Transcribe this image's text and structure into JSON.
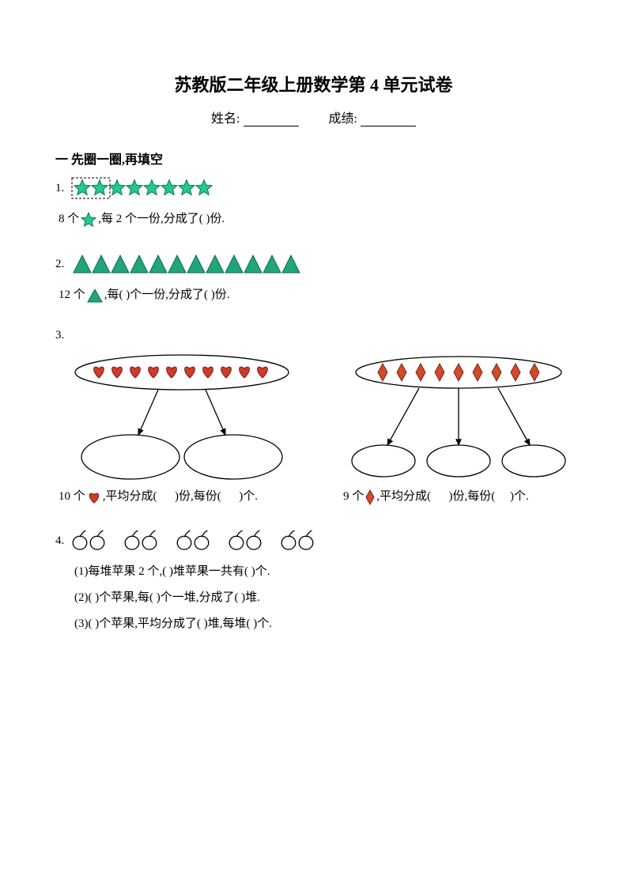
{
  "doc": {
    "title": "苏教版二年级上册数学第 4 单元试卷",
    "name_label": "姓名:",
    "score_label": "成绩:",
    "section1_heading": "一  先圈一圈,再填空"
  },
  "colors": {
    "star_fill": "#24c78f",
    "star_stroke": "#0a7a52",
    "tri_fill": "#22a57b",
    "tri_stroke": "#0a6b4d",
    "heart_fill": "#d03a2a",
    "heart_stroke": "#7a1d12",
    "diamond_fill": "#d24a2a",
    "diamond_stroke": "#7a2512",
    "outline": "#000000",
    "background": "#ffffff"
  },
  "q1": {
    "num": "1.",
    "count": 8,
    "circled_first": 2,
    "star_size": 22,
    "text_a": "8 个",
    "text_b": ",每 2 个一份,分成了(          )份."
  },
  "q2": {
    "num": "2.",
    "count": 12,
    "tri_size": 24,
    "text_a": "12 个",
    "text_b": ",每(           )个一份,分成了(           )份."
  },
  "q3": {
    "num": "3.",
    "hearts": 10,
    "diamonds": 9,
    "heart_size": 20,
    "diamond_w": 12,
    "diamond_h": 22,
    "line_left": "10 个       ,平均分成(        )份,每份(        )个.",
    "line_right": "9 个      ,平均分成(        )份,每份(       )个."
  },
  "q4": {
    "num": "4.",
    "groups": 5,
    "per_group": 2,
    "apple_size": 22,
    "line1": "(1)每堆苹果 2 个,(         )堆苹果一共有(         )个.",
    "line2": "(2)(         )个苹果,每(         )个一堆,分成了(           )堆.",
    "line3": "(3)(         )个苹果,平均分成了(         )堆,每堆(          )个."
  }
}
